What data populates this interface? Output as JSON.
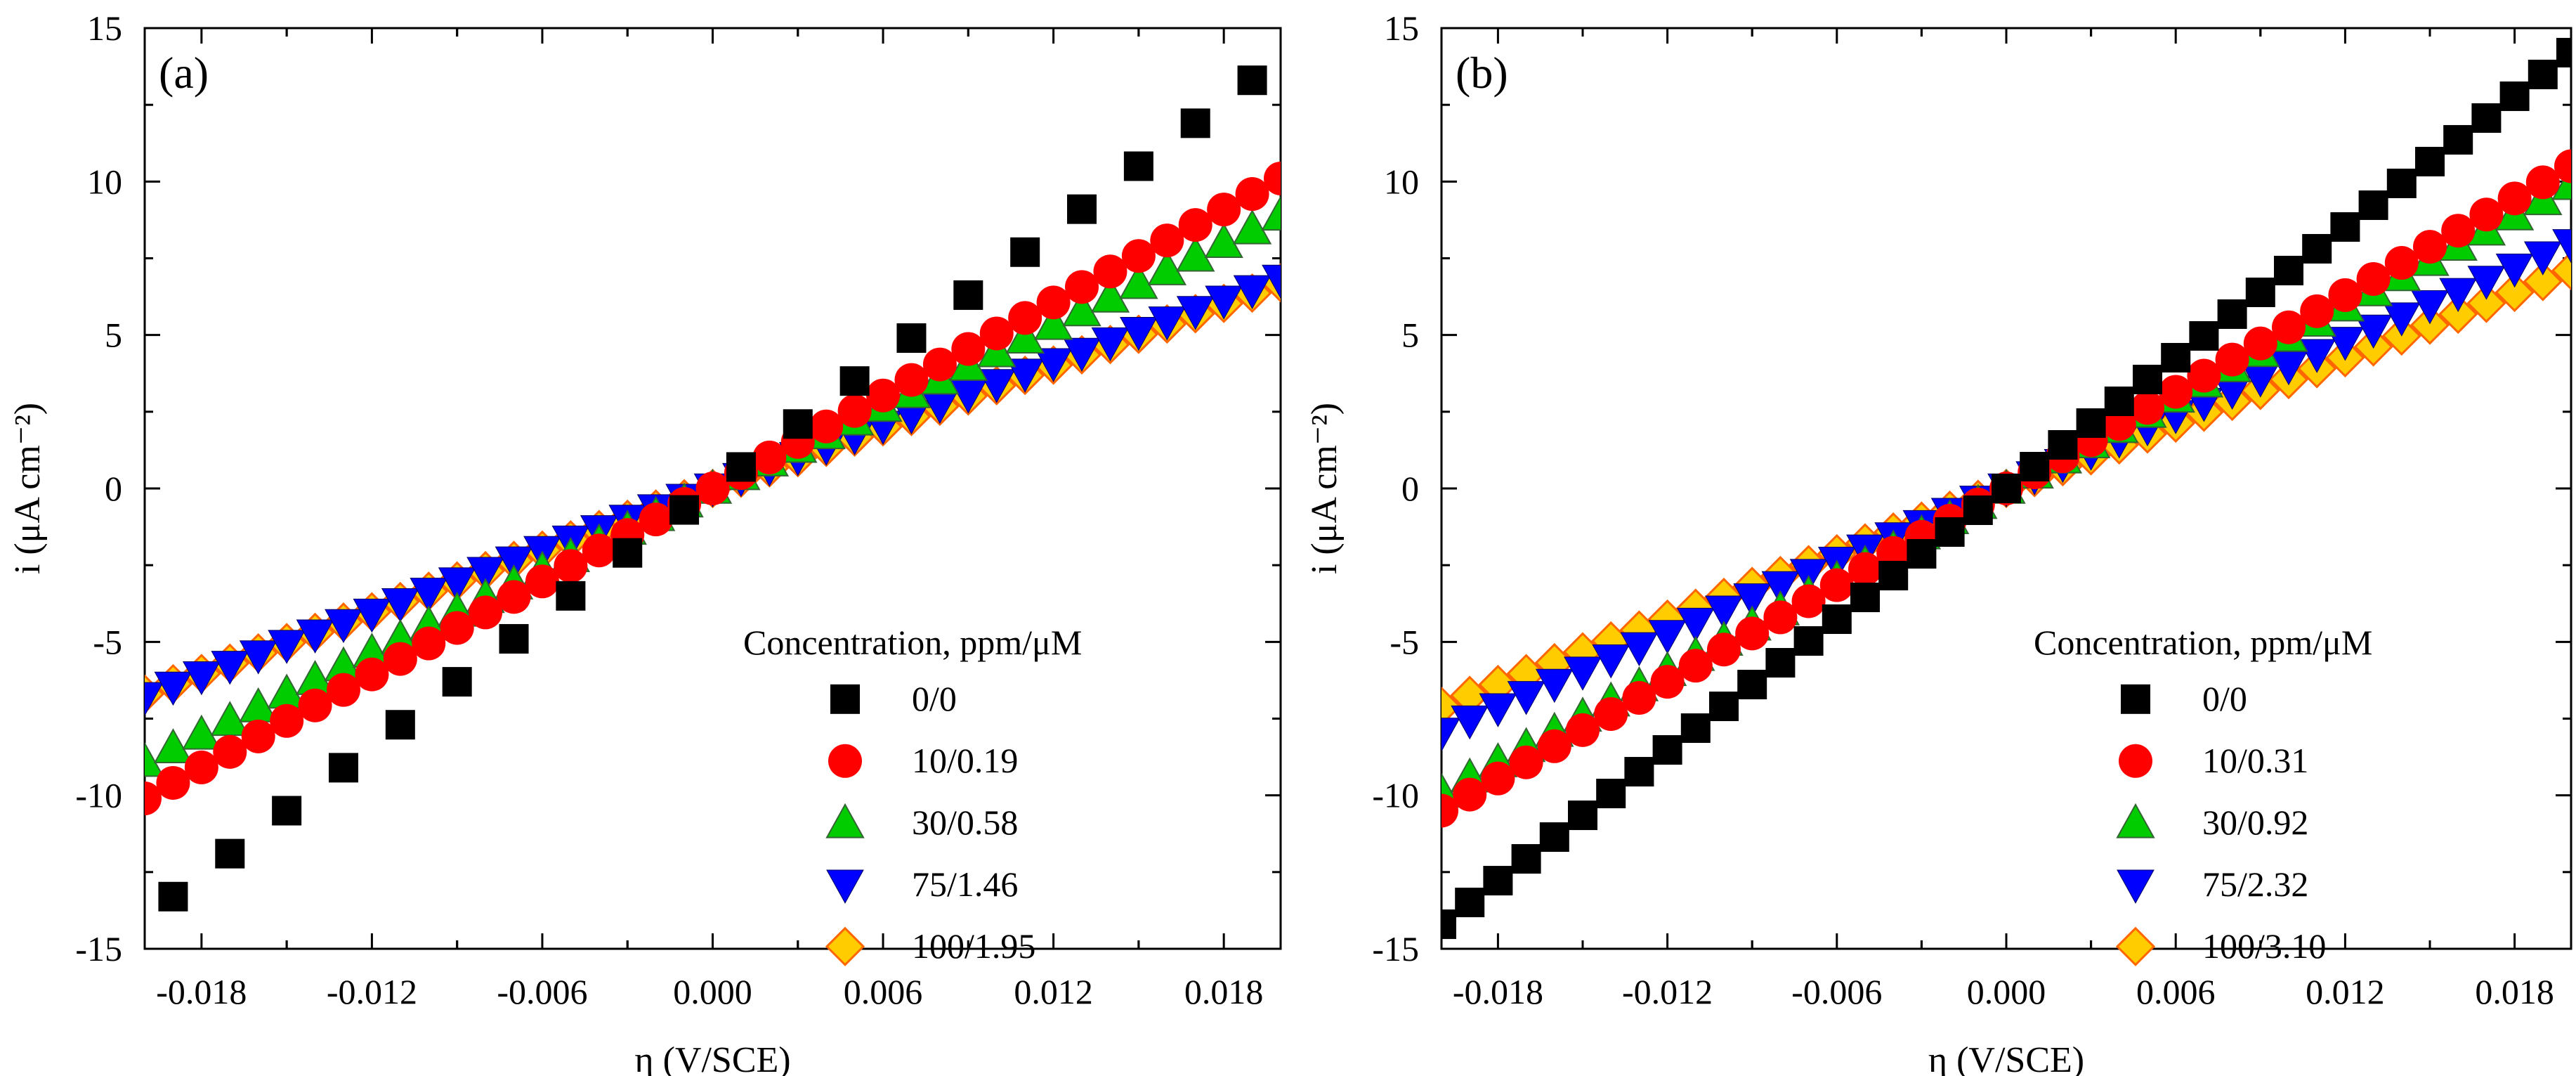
{
  "chart_data": [
    {
      "type": "scatter",
      "panel_label": "(a)",
      "xlabel": "η (V/SCE)",
      "ylabel": "i (μA cm⁻²)",
      "xlim": [
        -0.02,
        0.02
      ],
      "ylim": [
        -15,
        15
      ],
      "x_ticks": [
        "-0.018",
        "-0.012",
        "-0.006",
        "0.000",
        "0.006",
        "0.012",
        "0.018"
      ],
      "y_ticks": [
        "15",
        "10",
        "5",
        "0",
        "-5",
        "-10",
        "-15"
      ],
      "legend_title": "Concentration, ppm/μM",
      "legend_position": "lower-right",
      "x_step": 0.001,
      "x_start": -0.02,
      "series": [
        {
          "name": "0/0",
          "marker": "square",
          "color": "#000000",
          "slope": 700,
          "odd_only": true
        },
        {
          "name": "10/0.19",
          "marker": "circle",
          "color": "#ff0000",
          "slope": 505
        },
        {
          "name": "30/0.58",
          "marker": "triangle-up",
          "color": "#00cc00",
          "slope": 445
        },
        {
          "name": "75/1.46",
          "marker": "triangle-down",
          "color": "#0000ff",
          "slope": 340
        },
        {
          "name": "100/1.95",
          "marker": "diamond",
          "color": "#ffcc00",
          "slope": 335
        }
      ]
    },
    {
      "type": "scatter",
      "panel_label": "(b)",
      "xlabel": "η (V/SCE)",
      "ylabel": "i (μA cm⁻²)",
      "xlim": [
        -0.02,
        0.02
      ],
      "ylim": [
        -15,
        15
      ],
      "x_ticks": [
        "-0.018",
        "-0.012",
        "-0.006",
        "0.000",
        "0.006",
        "0.012",
        "0.018"
      ],
      "y_ticks": [
        "15",
        "10",
        "5",
        "0",
        "-5",
        "-10",
        "-15"
      ],
      "legend_title": "Concentration, ppm/μM",
      "legend_position": "lower-right",
      "x_step": 0.001,
      "x_start": -0.02,
      "series": [
        {
          "name": "0/0",
          "marker": "square",
          "color": "#000000",
          "slope": 710,
          "odd_only": false
        },
        {
          "name": "10/0.31",
          "marker": "circle",
          "color": "#ff0000",
          "slope": 525
        },
        {
          "name": "30/0.92",
          "marker": "triangle-up",
          "color": "#00cc00",
          "slope": 495
        },
        {
          "name": "75/2.32",
          "marker": "triangle-down",
          "color": "#0000ff",
          "slope": 398
        },
        {
          "name": "100/3.10",
          "marker": "diamond",
          "color": "#ffcc00",
          "slope": 355
        }
      ]
    }
  ]
}
